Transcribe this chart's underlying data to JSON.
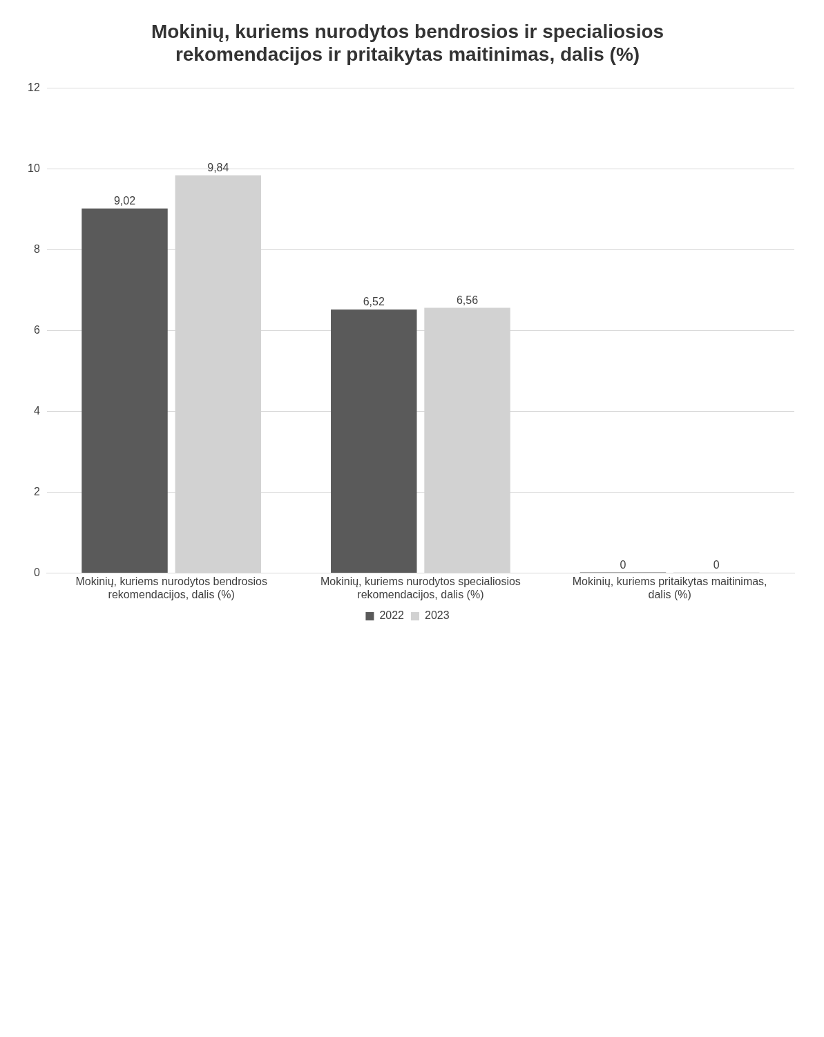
{
  "chart_data": {
    "type": "bar",
    "title": "Mokinių, kuriems nurodytos bendrosios ir specialiosios rekomendacijos ir pritaikytas maitinimas, dalis (%)",
    "categories": [
      "Mokinių, kuriems nurodytos bendrosios rekomendacijos, dalis (%)",
      "Mokinių, kuriems nurodytos specialiosios rekomendacijos, dalis (%)",
      "Mokinių, kuriems pritaikytas maitinimas, dalis (%)"
    ],
    "series": [
      {
        "name": "2022",
        "color": "#5a5a5a",
        "values": [
          9.02,
          6.52,
          0
        ],
        "value_labels": [
          "9,02",
          "6,52",
          "0"
        ]
      },
      {
        "name": "2023",
        "color": "#d2d2d2",
        "values": [
          9.84,
          6.56,
          0
        ],
        "value_labels": [
          "9,84",
          "6,56",
          "0"
        ]
      }
    ],
    "ylim": [
      0,
      12
    ],
    "yticks": [
      0,
      2,
      4,
      6,
      8,
      10,
      12
    ],
    "grid": "y",
    "legend": "bottom"
  }
}
